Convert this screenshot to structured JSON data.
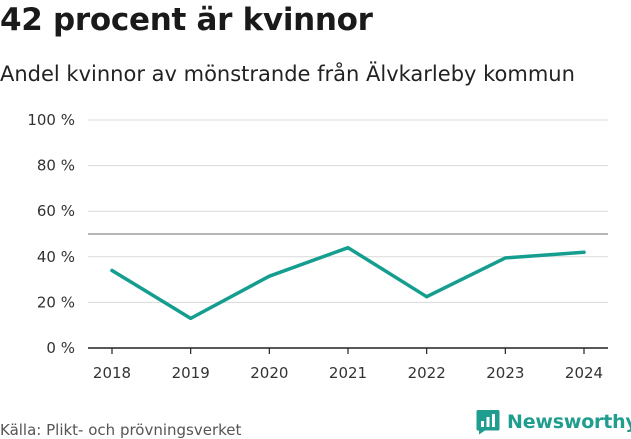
{
  "title": "42 procent är kvinnor",
  "subtitle": "Andel kvinnor av mönstrande från Älvkarleby kommun",
  "source": "Källa: Plikt- och prövningsverket",
  "brand": {
    "name": "Newsworthy",
    "color": "#1f9e8f",
    "icon": "newsworthy-logo-icon"
  },
  "colors": {
    "line": "#159e8f",
    "grid": "#d9d9d9",
    "reference": "#8a8a8a",
    "axis": "#222222"
  },
  "chart_data": {
    "type": "line",
    "x": [
      "2018",
      "2019",
      "2020",
      "2021",
      "2022",
      "2023",
      "2024"
    ],
    "series": [
      {
        "values": [
          34,
          13,
          31.5,
          44,
          22.5,
          39.5,
          42
        ]
      }
    ],
    "yticks": [
      0,
      20,
      40,
      60,
      80,
      100
    ],
    "ytick_labels": [
      "0 %",
      "20 %",
      "40 %",
      "60 %",
      "80 %",
      "100 %"
    ],
    "ylim": [
      0,
      100
    ],
    "reference_line": 50,
    "grid": true
  }
}
